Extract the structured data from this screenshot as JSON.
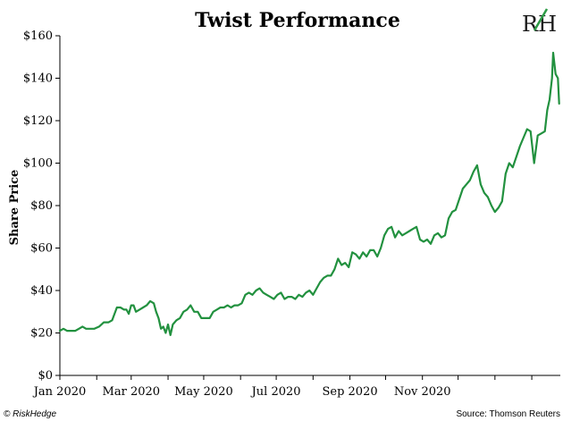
{
  "logo": {
    "text": "RH",
    "accent_color": "#2e9c47"
  },
  "footer": {
    "copyright": "© RiskHedge",
    "source": "Source: Thomson Reuters"
  },
  "chart_data": {
    "type": "line",
    "title": "Twist Performance",
    "ylabel": "Share Price",
    "xlabel": "",
    "ylim": [
      0,
      160
    ],
    "y_ticks": [
      "$0",
      "$20",
      "$40",
      "$60",
      "$80",
      "$100",
      "$120",
      "$140",
      "$160"
    ],
    "x_ticks": [
      "Jan 2020",
      "Mar 2020",
      "May 2020",
      "Jul 2020",
      "Sep 2020",
      "Nov 2020"
    ],
    "grid": false,
    "series": [
      {
        "color": "#22913f",
        "points": [
          [
            "2020-01-01",
            21
          ],
          [
            "2020-01-04",
            22
          ],
          [
            "2020-01-07",
            21
          ],
          [
            "2020-01-10",
            21
          ],
          [
            "2020-01-14",
            21
          ],
          [
            "2020-01-17",
            22
          ],
          [
            "2020-01-20",
            23
          ],
          [
            "2020-01-23",
            22
          ],
          [
            "2020-01-27",
            22
          ],
          [
            "2020-01-30",
            22
          ],
          [
            "2020-02-03",
            23
          ],
          [
            "2020-02-07",
            25
          ],
          [
            "2020-02-11",
            25
          ],
          [
            "2020-02-14",
            26
          ],
          [
            "2020-02-18",
            32
          ],
          [
            "2020-02-21",
            32
          ],
          [
            "2020-02-24",
            31
          ],
          [
            "2020-02-26",
            31
          ],
          [
            "2020-02-28",
            29
          ],
          [
            "2020-03-01",
            33
          ],
          [
            "2020-03-03",
            33
          ],
          [
            "2020-03-05",
            30
          ],
          [
            "2020-03-08",
            31
          ],
          [
            "2020-03-11",
            32
          ],
          [
            "2020-03-14",
            33
          ],
          [
            "2020-03-17",
            35
          ],
          [
            "2020-03-20",
            34
          ],
          [
            "2020-03-22",
            30
          ],
          [
            "2020-03-24",
            27
          ],
          [
            "2020-03-26",
            22
          ],
          [
            "2020-03-28",
            23
          ],
          [
            "2020-03-30",
            20
          ],
          [
            "2020-04-01",
            24
          ],
          [
            "2020-04-03",
            19
          ],
          [
            "2020-04-05",
            24
          ],
          [
            "2020-04-08",
            26
          ],
          [
            "2020-04-11",
            27
          ],
          [
            "2020-04-14",
            30
          ],
          [
            "2020-04-17",
            31
          ],
          [
            "2020-04-20",
            33
          ],
          [
            "2020-04-23",
            30
          ],
          [
            "2020-04-26",
            30
          ],
          [
            "2020-04-29",
            27
          ],
          [
            "2020-05-02",
            27
          ],
          [
            "2020-05-06",
            27
          ],
          [
            "2020-05-09",
            30
          ],
          [
            "2020-05-12",
            31
          ],
          [
            "2020-05-15",
            32
          ],
          [
            "2020-05-18",
            32
          ],
          [
            "2020-05-21",
            33
          ],
          [
            "2020-05-24",
            32
          ],
          [
            "2020-05-27",
            33
          ],
          [
            "2020-05-30",
            33
          ],
          [
            "2020-06-02",
            34
          ],
          [
            "2020-06-05",
            38
          ],
          [
            "2020-06-08",
            39
          ],
          [
            "2020-06-11",
            38
          ],
          [
            "2020-06-14",
            40
          ],
          [
            "2020-06-17",
            41
          ],
          [
            "2020-06-20",
            39
          ],
          [
            "2020-06-23",
            38
          ],
          [
            "2020-06-26",
            37
          ],
          [
            "2020-06-29",
            36
          ],
          [
            "2020-07-02",
            38
          ],
          [
            "2020-07-05",
            39
          ],
          [
            "2020-07-08",
            36
          ],
          [
            "2020-07-11",
            37
          ],
          [
            "2020-07-14",
            37
          ],
          [
            "2020-07-17",
            36
          ],
          [
            "2020-07-20",
            38
          ],
          [
            "2020-07-23",
            37
          ],
          [
            "2020-07-26",
            39
          ],
          [
            "2020-07-29",
            40
          ],
          [
            "2020-08-01",
            38
          ],
          [
            "2020-08-04",
            41
          ],
          [
            "2020-08-07",
            44
          ],
          [
            "2020-08-10",
            46
          ],
          [
            "2020-08-13",
            47
          ],
          [
            "2020-08-16",
            47
          ],
          [
            "2020-08-19",
            50
          ],
          [
            "2020-08-22",
            55
          ],
          [
            "2020-08-25",
            52
          ],
          [
            "2020-08-28",
            53
          ],
          [
            "2020-08-31",
            51
          ],
          [
            "2020-09-03",
            58
          ],
          [
            "2020-09-06",
            57
          ],
          [
            "2020-09-09",
            55
          ],
          [
            "2020-09-12",
            58
          ],
          [
            "2020-09-15",
            56
          ],
          [
            "2020-09-18",
            59
          ],
          [
            "2020-09-21",
            59
          ],
          [
            "2020-09-24",
            56
          ],
          [
            "2020-09-27",
            60
          ],
          [
            "2020-09-30",
            66
          ],
          [
            "2020-10-03",
            69
          ],
          [
            "2020-10-06",
            70
          ],
          [
            "2020-10-09",
            65
          ],
          [
            "2020-10-12",
            68
          ],
          [
            "2020-10-15",
            66
          ],
          [
            "2020-10-18",
            67
          ],
          [
            "2020-10-21",
            68
          ],
          [
            "2020-10-24",
            69
          ],
          [
            "2020-10-27",
            70
          ],
          [
            "2020-10-30",
            64
          ],
          [
            "2020-11-02",
            63
          ],
          [
            "2020-11-05",
            64
          ],
          [
            "2020-11-08",
            62
          ],
          [
            "2020-11-11",
            66
          ],
          [
            "2020-11-14",
            67
          ],
          [
            "2020-11-17",
            65
          ],
          [
            "2020-11-20",
            66
          ],
          [
            "2020-11-23",
            74
          ],
          [
            "2020-11-26",
            77
          ],
          [
            "2020-11-29",
            78
          ],
          [
            "2020-12-02",
            83
          ],
          [
            "2020-12-05",
            88
          ],
          [
            "2020-12-08",
            90
          ],
          [
            "2020-12-11",
            92
          ],
          [
            "2020-12-14",
            96
          ],
          [
            "2020-12-17",
            99
          ],
          [
            "2020-12-20",
            90
          ],
          [
            "2020-12-23",
            86
          ],
          [
            "2020-12-26",
            84
          ],
          [
            "2020-12-29",
            80
          ],
          [
            "2021-01-01",
            77
          ],
          [
            "2021-01-04",
            79
          ],
          [
            "2021-01-07",
            82
          ],
          [
            "2021-01-10",
            95
          ],
          [
            "2021-01-13",
            100
          ],
          [
            "2021-01-16",
            98
          ],
          [
            "2021-01-19",
            103
          ],
          [
            "2021-01-22",
            108
          ],
          [
            "2021-01-25",
            112
          ],
          [
            "2021-01-28",
            116
          ],
          [
            "2021-01-31",
            115
          ],
          [
            "2021-02-03",
            100
          ],
          [
            "2021-02-06",
            113
          ],
          [
            "2021-02-09",
            114
          ],
          [
            "2021-02-12",
            115
          ],
          [
            "2021-02-14",
            125
          ],
          [
            "2021-02-16",
            130
          ],
          [
            "2021-02-18",
            140
          ],
          [
            "2021-02-19",
            152
          ],
          [
            "2021-02-21",
            142
          ],
          [
            "2021-02-23",
            140
          ],
          [
            "2021-02-24",
            128
          ]
        ]
      }
    ]
  }
}
